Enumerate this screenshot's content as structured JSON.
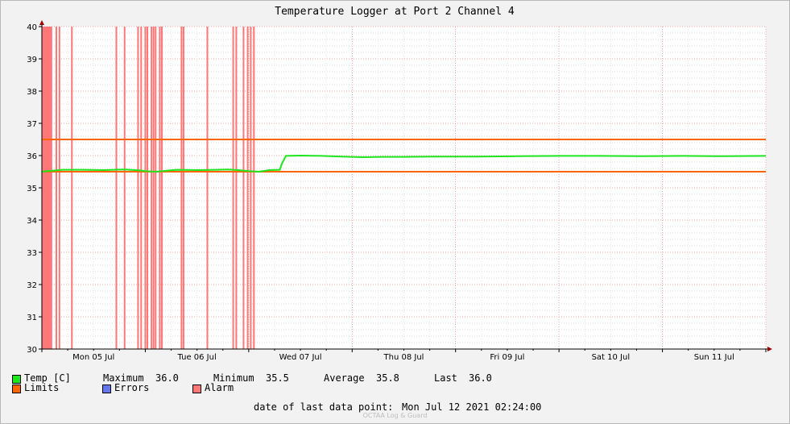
{
  "chart_data": {
    "type": "line",
    "title": "Temperature Logger at Port 2 Channel 4",
    "ylim": [
      30,
      40
    ],
    "yticks": [
      30,
      31,
      32,
      33,
      34,
      35,
      36,
      37,
      38,
      39,
      40
    ],
    "xlim_days": [
      0,
      7
    ],
    "xticks": [
      {
        "label": "Mon 05 Jul",
        "day": 0.5
      },
      {
        "label": "Tue 06 Jul",
        "day": 1.5
      },
      {
        "label": "Wed 07 Jul",
        "day": 2.5
      },
      {
        "label": "Thu 08 Jul",
        "day": 3.5
      },
      {
        "label": "Fri 09 Jul",
        "day": 4.5
      },
      {
        "label": "Sat 10 Jul",
        "day": 5.5
      },
      {
        "label": "Sun 11 Jul",
        "day": 6.5
      }
    ],
    "grid": true,
    "limits": {
      "upper": 36.5,
      "lower": 35.5
    },
    "series": [
      {
        "name": "Temp [C]",
        "x_days": [
          0.0,
          0.1,
          0.2,
          0.4,
          0.6,
          0.8,
          0.95,
          1.0,
          1.1,
          1.3,
          1.5,
          1.7,
          1.8,
          1.9,
          2.0,
          2.1,
          2.2,
          2.3,
          2.32,
          2.36,
          2.5,
          2.7,
          2.9,
          3.1,
          3.3,
          3.5,
          3.8,
          4.2,
          4.6,
          5.0,
          5.4,
          5.8,
          6.2,
          6.6,
          7.0
        ],
        "values": [
          35.5,
          35.53,
          35.56,
          35.56,
          35.55,
          35.57,
          35.54,
          35.52,
          35.5,
          35.56,
          35.55,
          35.56,
          35.57,
          35.55,
          35.52,
          35.5,
          35.55,
          35.56,
          35.75,
          35.99,
          36.0,
          35.99,
          35.97,
          35.95,
          35.96,
          35.96,
          35.97,
          35.97,
          35.98,
          35.99,
          35.99,
          35.98,
          35.99,
          35.98,
          35.99
        ]
      }
    ],
    "alarm_block_days": [
      0.0,
      0.1
    ],
    "alarm_days": [
      0.14,
      0.17,
      0.29,
      0.72,
      0.8,
      0.93,
      0.96,
      1.0,
      1.02,
      1.06,
      1.08,
      1.1,
      1.14,
      1.16,
      1.35,
      1.37,
      1.6,
      1.85,
      1.88,
      1.95,
      1.99,
      2.02,
      2.05
    ],
    "colors": {
      "temp": "#1ee61e",
      "limits": "#ff6600",
      "errors": "#6677ee",
      "alarm": "#ff7777",
      "grid": "#f3a6a6",
      "axis": "#000000",
      "arrow": "#990000"
    }
  },
  "legend": {
    "temp_label": "Temp [C]",
    "maximum_label": "Maximum",
    "maximum_value": "36.0",
    "minimum_label": "Minimum",
    "minimum_value": "35.5",
    "average_label": "Average",
    "average_value": "35.8",
    "last_label": "Last",
    "last_value": "36.0",
    "limits_label": "Limits",
    "errors_label": "Errors",
    "alarm_label": "Alarm"
  },
  "footer": {
    "date_label": "date of last data point:",
    "date_value": "Mon Jul 12 2021 02:24:00",
    "watermark": "OCTAA Log & Guard"
  }
}
